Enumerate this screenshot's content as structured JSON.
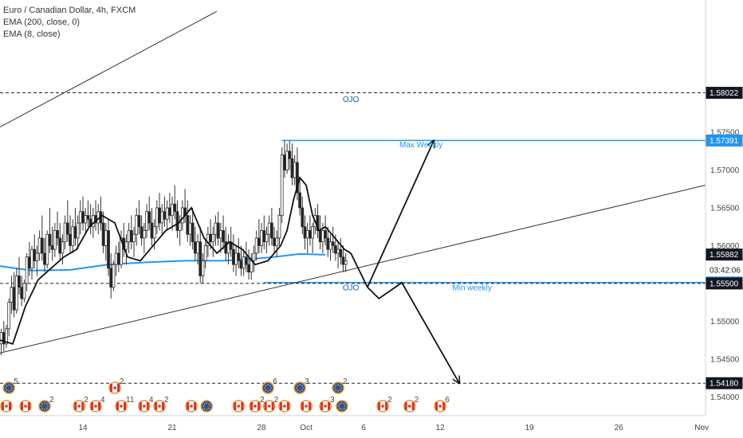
{
  "chart_data": {
    "type": "candlestick",
    "title": "Euro / Canadian Dollar, 4h, FXCM",
    "indicators": [
      "EMA (200, close, 0)",
      "EMA (8, close)"
    ],
    "ylim": [
      1.5375,
      1.5925
    ],
    "y_ticks": [
      "1.57500",
      "1.57000",
      "1.56500",
      "1.56000",
      "1.55000",
      "1.54500",
      "1.54000"
    ],
    "x_ticks": [
      {
        "label": "14",
        "day": 14
      },
      {
        "label": "21",
        "day": 21
      },
      {
        "label": "28",
        "day": 28
      },
      {
        "label": "Oct",
        "day": 31.5
      },
      {
        "label": "6",
        "day": 36
      },
      {
        "label": "12",
        "day": 42
      },
      {
        "label": "19",
        "day": 49
      },
      {
        "label": "26",
        "day": 56
      },
      {
        "label": "Nov",
        "day": 62.5
      }
    ],
    "xlim": [
      7.5,
      62.8
    ],
    "price_tags": [
      {
        "value": "1.58022",
        "y": 1.58022,
        "style": "dashed-dark"
      },
      {
        "value": "1.57391",
        "y": 1.57391,
        "style": "blue"
      },
      {
        "value": "1.55882",
        "y": 1.55882,
        "style": "dark"
      },
      {
        "value": "03:42:06",
        "y": 1.5568,
        "style": "plain"
      },
      {
        "value": "1.55512",
        "y": 1.55512,
        "style": "blue"
      },
      {
        "value": "1.55500",
        "y": 1.555,
        "style": "dark"
      },
      {
        "value": "1.54180",
        "y": 1.5418,
        "style": "dashed-dark"
      }
    ],
    "annotations": [
      {
        "text": "OJO",
        "day": 35,
        "y": 1.579,
        "color": "#1a5fa0"
      },
      {
        "text": "Max Weekly",
        "day": 40.5,
        "y": 1.573,
        "color": "#2196f3"
      },
      {
        "text": "OJO",
        "day": 35,
        "y": 1.5541,
        "color": "#1a5fa0"
      },
      {
        "text": "Min weekly",
        "day": 44.5,
        "y": 1.5541,
        "color": "#2196f3"
      }
    ],
    "ema200": [
      [
        7.5,
        1.5573
      ],
      [
        10,
        1.5567
      ],
      [
        13,
        1.5568
      ],
      [
        16,
        1.5575
      ],
      [
        19,
        1.5578
      ],
      [
        22,
        1.558
      ],
      [
        25,
        1.558
      ],
      [
        27,
        1.5582
      ],
      [
        29,
        1.5585
      ],
      [
        31,
        1.5589
      ],
      [
        33,
        1.5588
      ]
    ],
    "ema8": [
      [
        7.5,
        1.5475
      ],
      [
        8.5,
        1.547
      ],
      [
        9.5,
        1.552
      ],
      [
        10.5,
        1.5555
      ],
      [
        11.5,
        1.557
      ],
      [
        12.5,
        1.5585
      ],
      [
        13.5,
        1.5595
      ],
      [
        14.5,
        1.5625
      ],
      [
        15.5,
        1.564
      ],
      [
        16.5,
        1.563
      ],
      [
        17.5,
        1.5585
      ],
      [
        18.5,
        1.558
      ],
      [
        19.5,
        1.56
      ],
      [
        20.5,
        1.562
      ],
      [
        21.5,
        1.563
      ],
      [
        22.5,
        1.565
      ],
      [
        23.5,
        1.561
      ],
      [
        24.5,
        1.559
      ],
      [
        25.5,
        1.5605
      ],
      [
        26.5,
        1.5595
      ],
      [
        27.5,
        1.5575
      ],
      [
        28.5,
        1.558
      ],
      [
        29.5,
        1.56
      ],
      [
        30,
        1.562
      ],
      [
        30.5,
        1.566
      ],
      [
        31,
        1.569
      ],
      [
        31.5,
        1.568
      ],
      [
        32,
        1.564
      ],
      [
        32.5,
        1.562
      ],
      [
        33,
        1.5625
      ],
      [
        33.5,
        1.5615
      ],
      [
        34,
        1.5605
      ],
      [
        34.5,
        1.5595
      ],
      [
        35,
        1.559
      ]
    ],
    "candles": [
      [
        7.6,
        1.547,
        1.549,
        1.5455,
        1.5485
      ],
      [
        7.8,
        1.5485,
        1.55,
        1.546,
        1.547
      ],
      [
        8.0,
        1.547,
        1.5495,
        1.5465,
        1.549
      ],
      [
        8.2,
        1.549,
        1.553,
        1.548,
        1.5525
      ],
      [
        8.4,
        1.5525,
        1.556,
        1.551,
        1.5545
      ],
      [
        8.6,
        1.5545,
        1.5565,
        1.5505,
        1.5515
      ],
      [
        8.8,
        1.5515,
        1.557,
        1.551,
        1.556
      ],
      [
        9.0,
        1.556,
        1.5585,
        1.5535,
        1.5545
      ],
      [
        9.2,
        1.5545,
        1.556,
        1.552,
        1.553
      ],
      [
        9.4,
        1.553,
        1.5555,
        1.5525,
        1.555
      ],
      [
        9.6,
        1.555,
        1.559,
        1.554,
        1.5585
      ],
      [
        9.8,
        1.5585,
        1.5605,
        1.556,
        1.557
      ],
      [
        10.0,
        1.557,
        1.56,
        1.5555,
        1.5595
      ],
      [
        10.2,
        1.5595,
        1.5615,
        1.557,
        1.558
      ],
      [
        10.4,
        1.558,
        1.56,
        1.556,
        1.559
      ],
      [
        10.6,
        1.559,
        1.562,
        1.558,
        1.561
      ],
      [
        10.8,
        1.561,
        1.564,
        1.558,
        1.559
      ],
      [
        11.0,
        1.559,
        1.561,
        1.5565,
        1.5575
      ],
      [
        11.2,
        1.5575,
        1.562,
        1.557,
        1.5615
      ],
      [
        11.4,
        1.5615,
        1.565,
        1.559,
        1.56
      ],
      [
        11.6,
        1.56,
        1.5625,
        1.558,
        1.5595
      ],
      [
        11.8,
        1.5595,
        1.563,
        1.5585,
        1.562
      ],
      [
        12.0,
        1.562,
        1.5645,
        1.56,
        1.561
      ],
      [
        12.2,
        1.561,
        1.563,
        1.558,
        1.559
      ],
      [
        12.4,
        1.559,
        1.5615,
        1.5575,
        1.5605
      ],
      [
        12.6,
        1.5605,
        1.564,
        1.5595,
        1.563
      ],
      [
        12.8,
        1.563,
        1.566,
        1.5605,
        1.5615
      ],
      [
        13.0,
        1.5615,
        1.564,
        1.559,
        1.56
      ],
      [
        13.2,
        1.56,
        1.5635,
        1.559,
        1.5625
      ],
      [
        13.4,
        1.5625,
        1.565,
        1.56,
        1.561
      ],
      [
        13.6,
        1.561,
        1.564,
        1.5595,
        1.563
      ],
      [
        13.8,
        1.563,
        1.566,
        1.5615,
        1.5645
      ],
      [
        14.0,
        1.5645,
        1.5665,
        1.562,
        1.563
      ],
      [
        14.2,
        1.563,
        1.565,
        1.5615,
        1.564
      ],
      [
        14.4,
        1.564,
        1.566,
        1.5625,
        1.5635
      ],
      [
        14.6,
        1.5635,
        1.5655,
        1.5615,
        1.5625
      ],
      [
        14.8,
        1.5625,
        1.565,
        1.561,
        1.564
      ],
      [
        15.0,
        1.564,
        1.566,
        1.562,
        1.563
      ],
      [
        15.2,
        1.563,
        1.5655,
        1.5615,
        1.5645
      ],
      [
        15.4,
        1.5645,
        1.5665,
        1.562,
        1.563
      ],
      [
        15.6,
        1.563,
        1.5645,
        1.559,
        1.56
      ],
      [
        15.8,
        1.56,
        1.563,
        1.558,
        1.562
      ],
      [
        16.0,
        1.562,
        1.5635,
        1.556,
        1.557
      ],
      [
        16.2,
        1.557,
        1.559,
        1.553,
        1.5545
      ],
      [
        16.4,
        1.5545,
        1.558,
        1.554,
        1.5575
      ],
      [
        16.6,
        1.5575,
        1.56,
        1.556,
        1.559
      ],
      [
        16.8,
        1.559,
        1.5605,
        1.5565,
        1.5575
      ],
      [
        17.0,
        1.5575,
        1.562,
        1.557,
        1.561
      ],
      [
        17.2,
        1.561,
        1.563,
        1.5585,
        1.5595
      ],
      [
        17.4,
        1.5595,
        1.5615,
        1.5575,
        1.5605
      ],
      [
        17.6,
        1.5605,
        1.563,
        1.559,
        1.562
      ],
      [
        17.8,
        1.562,
        1.564,
        1.5595,
        1.5605
      ],
      [
        18.0,
        1.5605,
        1.5625,
        1.5585,
        1.5615
      ],
      [
        18.2,
        1.5615,
        1.565,
        1.56,
        1.564
      ],
      [
        18.4,
        1.564,
        1.566,
        1.5615,
        1.5625
      ],
      [
        18.6,
        1.5625,
        1.564,
        1.56,
        1.561
      ],
      [
        18.8,
        1.561,
        1.563,
        1.559,
        1.562
      ],
      [
        19.0,
        1.562,
        1.5655,
        1.561,
        1.5645
      ],
      [
        19.2,
        1.5645,
        1.5665,
        1.562,
        1.563
      ],
      [
        19.4,
        1.563,
        1.565,
        1.56,
        1.561
      ],
      [
        19.6,
        1.561,
        1.5635,
        1.5595,
        1.5625
      ],
      [
        19.8,
        1.5625,
        1.566,
        1.5615,
        1.565
      ],
      [
        20.0,
        1.565,
        1.567,
        1.562,
        1.563
      ],
      [
        20.2,
        1.563,
        1.5655,
        1.5615,
        1.5645
      ],
      [
        20.4,
        1.5645,
        1.5665,
        1.5625,
        1.5635
      ],
      [
        20.6,
        1.5635,
        1.566,
        1.562,
        1.565
      ],
      [
        20.8,
        1.565,
        1.567,
        1.563,
        1.564
      ],
      [
        21.0,
        1.564,
        1.5665,
        1.562,
        1.5655
      ],
      [
        21.2,
        1.5655,
        1.568,
        1.5635,
        1.5645
      ],
      [
        21.4,
        1.5645,
        1.566,
        1.561,
        1.562
      ],
      [
        21.6,
        1.562,
        1.564,
        1.56,
        1.563
      ],
      [
        21.8,
        1.563,
        1.566,
        1.562,
        1.565
      ],
      [
        22.0,
        1.565,
        1.5675,
        1.563,
        1.564
      ],
      [
        22.2,
        1.564,
        1.566,
        1.5605,
        1.5615
      ],
      [
        22.4,
        1.5615,
        1.564,
        1.56,
        1.563
      ],
      [
        22.6,
        1.563,
        1.565,
        1.5595,
        1.5605
      ],
      [
        22.8,
        1.5605,
        1.5625,
        1.558,
        1.559
      ],
      [
        23.0,
        1.559,
        1.5615,
        1.5575,
        1.5605
      ],
      [
        23.2,
        1.5605,
        1.5625,
        1.555,
        1.556
      ],
      [
        23.4,
        1.556,
        1.559,
        1.555,
        1.558
      ],
      [
        23.6,
        1.558,
        1.561,
        1.557,
        1.56
      ],
      [
        23.8,
        1.56,
        1.5625,
        1.5585,
        1.5615
      ],
      [
        24.0,
        1.5615,
        1.5635,
        1.5595,
        1.5605
      ],
      [
        24.2,
        1.5605,
        1.5625,
        1.5585,
        1.5615
      ],
      [
        24.4,
        1.5615,
        1.564,
        1.56,
        1.563
      ],
      [
        24.6,
        1.563,
        1.5645,
        1.56,
        1.561
      ],
      [
        24.8,
        1.561,
        1.563,
        1.559,
        1.562
      ],
      [
        25.0,
        1.562,
        1.564,
        1.5595,
        1.5605
      ],
      [
        25.2,
        1.5605,
        1.5625,
        1.558,
        1.559
      ],
      [
        25.4,
        1.559,
        1.5615,
        1.5575,
        1.5605
      ],
      [
        25.6,
        1.5605,
        1.5625,
        1.5585,
        1.5595
      ],
      [
        25.8,
        1.5595,
        1.5615,
        1.5565,
        1.5575
      ],
      [
        26.0,
        1.5575,
        1.56,
        1.556,
        1.559
      ],
      [
        26.2,
        1.559,
        1.561,
        1.557,
        1.558
      ],
      [
        26.4,
        1.558,
        1.56,
        1.556,
        1.557
      ],
      [
        26.6,
        1.557,
        1.5595,
        1.556,
        1.5585
      ],
      [
        26.8,
        1.5585,
        1.5605,
        1.5565,
        1.5575
      ],
      [
        27.0,
        1.5575,
        1.5595,
        1.5555,
        1.5565
      ],
      [
        27.2,
        1.5565,
        1.559,
        1.5555,
        1.558
      ],
      [
        27.4,
        1.558,
        1.56,
        1.5565,
        1.559
      ],
      [
        27.6,
        1.559,
        1.562,
        1.558,
        1.561
      ],
      [
        27.8,
        1.561,
        1.5635,
        1.559,
        1.56
      ],
      [
        28.0,
        1.56,
        1.563,
        1.559,
        1.562
      ],
      [
        28.2,
        1.562,
        1.564,
        1.5595,
        1.5605
      ],
      [
        28.4,
        1.5605,
        1.5625,
        1.559,
        1.5615
      ],
      [
        28.6,
        1.5615,
        1.564,
        1.56,
        1.563
      ],
      [
        28.8,
        1.563,
        1.565,
        1.56,
        1.561
      ],
      [
        29.0,
        1.561,
        1.5625,
        1.559,
        1.56
      ],
      [
        29.2,
        1.56,
        1.562,
        1.5585,
        1.561
      ],
      [
        29.4,
        1.561,
        1.565,
        1.56,
        1.564
      ],
      [
        29.6,
        1.564,
        1.573,
        1.563,
        1.572
      ],
      [
        29.8,
        1.572,
        1.5739,
        1.569,
        1.57
      ],
      [
        30.0,
        1.57,
        1.5735,
        1.5695,
        1.5725
      ],
      [
        30.2,
        1.5725,
        1.5739,
        1.57,
        1.5715
      ],
      [
        30.4,
        1.5715,
        1.5735,
        1.568,
        1.569
      ],
      [
        30.6,
        1.569,
        1.572,
        1.568,
        1.571
      ],
      [
        30.8,
        1.571,
        1.573,
        1.566,
        1.567
      ],
      [
        31.0,
        1.567,
        1.569,
        1.564,
        1.565
      ],
      [
        31.2,
        1.565,
        1.5665,
        1.5615,
        1.5625
      ],
      [
        31.4,
        1.5625,
        1.564,
        1.5595,
        1.561
      ],
      [
        31.6,
        1.561,
        1.563,
        1.559,
        1.562
      ],
      [
        31.8,
        1.562,
        1.564,
        1.56,
        1.561
      ],
      [
        32.0,
        1.561,
        1.563,
        1.559,
        1.5625
      ],
      [
        32.2,
        1.5625,
        1.565,
        1.5615,
        1.564
      ],
      [
        32.4,
        1.564,
        1.5655,
        1.561,
        1.562
      ],
      [
        32.6,
        1.562,
        1.564,
        1.5595,
        1.5605
      ],
      [
        32.8,
        1.5605,
        1.563,
        1.559,
        1.562
      ],
      [
        33.0,
        1.562,
        1.564,
        1.56,
        1.561
      ],
      [
        33.2,
        1.561,
        1.5625,
        1.5585,
        1.5595
      ],
      [
        33.4,
        1.5595,
        1.5615,
        1.558,
        1.5605
      ],
      [
        33.6,
        1.5605,
        1.5625,
        1.559,
        1.56
      ],
      [
        33.8,
        1.56,
        1.5615,
        1.558,
        1.559
      ],
      [
        34.0,
        1.559,
        1.5605,
        1.557,
        1.5595
      ],
      [
        34.2,
        1.5595,
        1.561,
        1.5575,
        1.5585
      ],
      [
        34.4,
        1.5585,
        1.56,
        1.5565,
        1.5575
      ],
      [
        34.6,
        1.5575,
        1.559,
        1.5565,
        1.558
      ]
    ],
    "trend_lines": [
      {
        "from": [
          7.5,
          1.5757
        ],
        "to": [
          24.5,
          1.591
        ],
        "color": "#333"
      },
      {
        "from": [
          7.5,
          1.5458
        ],
        "to": [
          62.8,
          1.568
        ],
        "color": "#333"
      }
    ],
    "levels": [
      {
        "y": 1.58022,
        "from": 7.5,
        "to": 62.8,
        "style": "dashed"
      },
      {
        "y": 1.57391,
        "from": 29.6,
        "to": 62.8,
        "style": "blue"
      },
      {
        "y": 1.55512,
        "from": 28.2,
        "to": 62.8,
        "style": "blue"
      },
      {
        "y": 1.555,
        "from": 7.5,
        "to": 62.8,
        "style": "dashed"
      },
      {
        "y": 1.5418,
        "from": 7.5,
        "to": 62.8,
        "style": "dashed"
      }
    ],
    "projection": [
      [
        35,
        1.559
      ],
      [
        36.3,
        1.5545
      ],
      [
        37.2,
        1.553
      ],
      [
        39,
        1.5551
      ],
      [
        43.5,
        1.5418
      ]
    ],
    "projection_up": [
      [
        36.3,
        1.5545
      ],
      [
        41.5,
        1.5739
      ]
    ],
    "events_row1": [
      {
        "day": 8.2,
        "flag": "eu",
        "count": "5"
      },
      {
        "day": 16.5,
        "flag": "ca",
        "count": "2"
      },
      {
        "day": 28.5,
        "flag": "eu",
        "count": "6"
      },
      {
        "day": 31.0,
        "flag": "eu",
        "count": "3"
      },
      {
        "day": 34.0,
        "flag": "eu",
        "count": "2"
      }
    ],
    "events_row2": [
      {
        "day": 8.0,
        "flag": "ca",
        "count": ""
      },
      {
        "day": 9.5,
        "flag": "ca",
        "count": ""
      },
      {
        "day": 11.0,
        "flag": "eu",
        "count": "2"
      },
      {
        "day": 13.7,
        "flag": "ca",
        "count": "2"
      },
      {
        "day": 15.0,
        "flag": "ca",
        "count": "4"
      },
      {
        "day": 17.0,
        "flag": "ca",
        "count": "11"
      },
      {
        "day": 18.8,
        "flag": "ca",
        "count": "4"
      },
      {
        "day": 20.0,
        "flag": "ca",
        "count": "2"
      },
      {
        "day": 22.5,
        "flag": "ca",
        "count": ""
      },
      {
        "day": 23.7,
        "flag": "eu",
        "count": ""
      },
      {
        "day": 26.2,
        "flag": "ca",
        "count": ""
      },
      {
        "day": 27.5,
        "flag": "ca",
        "count": "2"
      },
      {
        "day": 28.6,
        "flag": "ca",
        "count": "2"
      },
      {
        "day": 29.8,
        "flag": "ca",
        "count": ""
      },
      {
        "day": 31.5,
        "flag": "ca",
        "count": ""
      },
      {
        "day": 33.0,
        "flag": "ca",
        "count": "3"
      },
      {
        "day": 34.3,
        "flag": "eu",
        "count": ""
      },
      {
        "day": 37.5,
        "flag": "ca",
        "count": "2"
      },
      {
        "day": 39.6,
        "flag": "ca",
        "count": "2"
      },
      {
        "day": 42.0,
        "flag": "ca",
        "count": "6"
      }
    ]
  }
}
